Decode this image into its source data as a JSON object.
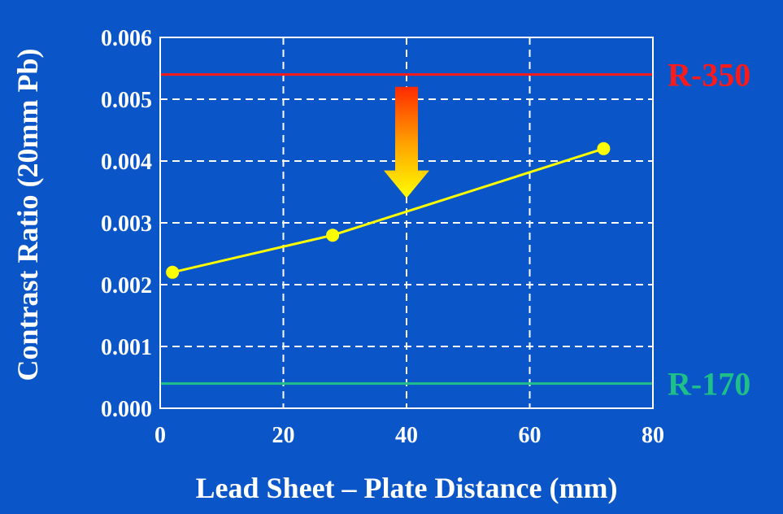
{
  "chart_data": {
    "type": "line",
    "xlabel": "Lead Sheet – Plate Distance (mm)",
    "ylabel": "Contrast Ratio (20mm Pb)",
    "xlim": [
      0,
      80
    ],
    "ylim": [
      0,
      0.006
    ],
    "x_ticks": [
      "0",
      "20",
      "40",
      "60",
      "80"
    ],
    "y_ticks": [
      "0.000",
      "0.001",
      "0.002",
      "0.003",
      "0.004",
      "0.005",
      "0.006"
    ],
    "grid": true,
    "series": [
      {
        "x": [
          2,
          28,
          72
        ],
        "y": [
          0.0022,
          0.0028,
          0.0042
        ]
      }
    ],
    "reference_lines": [
      {
        "label": "R-350",
        "y": 0.0054,
        "color": "#ff1a1a"
      },
      {
        "label": "R-170",
        "y": 0.0004,
        "color": "#1fbf8a"
      }
    ],
    "annotation": {
      "type": "arrow-down",
      "x": 40,
      "y_top": 0.0052,
      "y_bottom": 0.0034
    },
    "colors": {
      "background": "#0a55c8",
      "line": "#ffff00",
      "axes": "#ffffff",
      "text": "#ffffff"
    }
  }
}
